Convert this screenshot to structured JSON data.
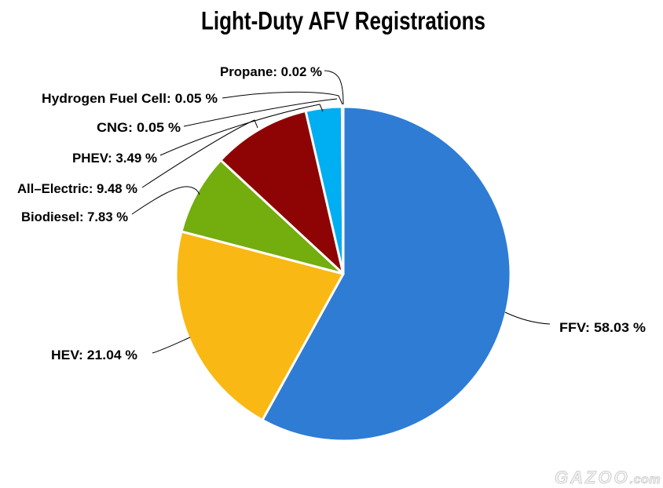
{
  "title": "Light-Duty AFV Registrations",
  "watermark": {
    "brand": "GAZOO",
    "suffix": ".com"
  },
  "chart_data": {
    "type": "pie",
    "title": "Light-Duty AFV Registrations",
    "unit": "%",
    "start_angle_deg": 0,
    "direction": "clockwise",
    "slices": [
      {
        "label": "FFV",
        "value": 58.03,
        "color": "#2F7CD4"
      },
      {
        "label": "HEV",
        "value": 21.04,
        "color": "#F9B814"
      },
      {
        "label": "Biodiesel",
        "value": 7.83,
        "color": "#73AD0E"
      },
      {
        "label": "All–Electric",
        "value": 9.48,
        "color": "#8E0404"
      },
      {
        "label": "PHEV",
        "value": 3.49,
        "color": "#00AEF2"
      },
      {
        "label": "CNG",
        "value": 0.05
      },
      {
        "label": "Hydrogen Fuel Cell",
        "value": 0.05
      },
      {
        "label": "Propane",
        "value": 0.02
      }
    ]
  }
}
